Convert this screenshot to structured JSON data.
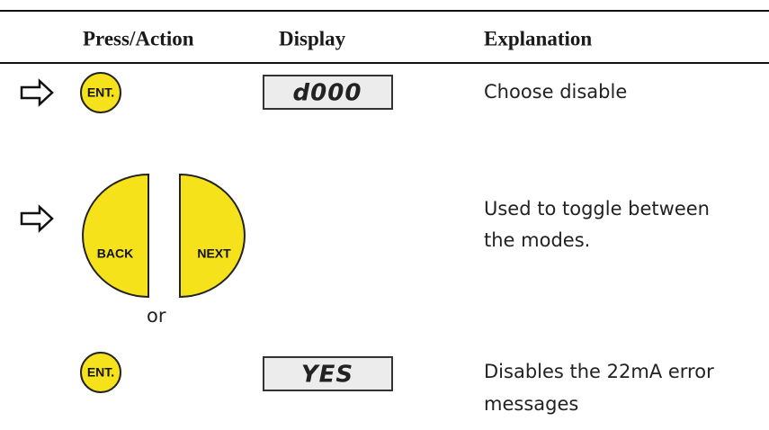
{
  "header": {
    "columns": [
      "Press/Action",
      "Display",
      "Explanation"
    ]
  },
  "rows": [
    {
      "buttons": [
        "ENT."
      ],
      "display": "d000",
      "explanation": [
        "Choose disable"
      ]
    },
    {
      "buttons": [
        "BACK",
        "NEXT"
      ],
      "connector": "or",
      "explanation": [
        "Used to toggle between",
        "the modes."
      ]
    },
    {
      "buttons": [
        "ENT."
      ],
      "display": "YES",
      "explanation": [
        "Disables the 22mA error",
        "messages"
      ]
    }
  ]
}
